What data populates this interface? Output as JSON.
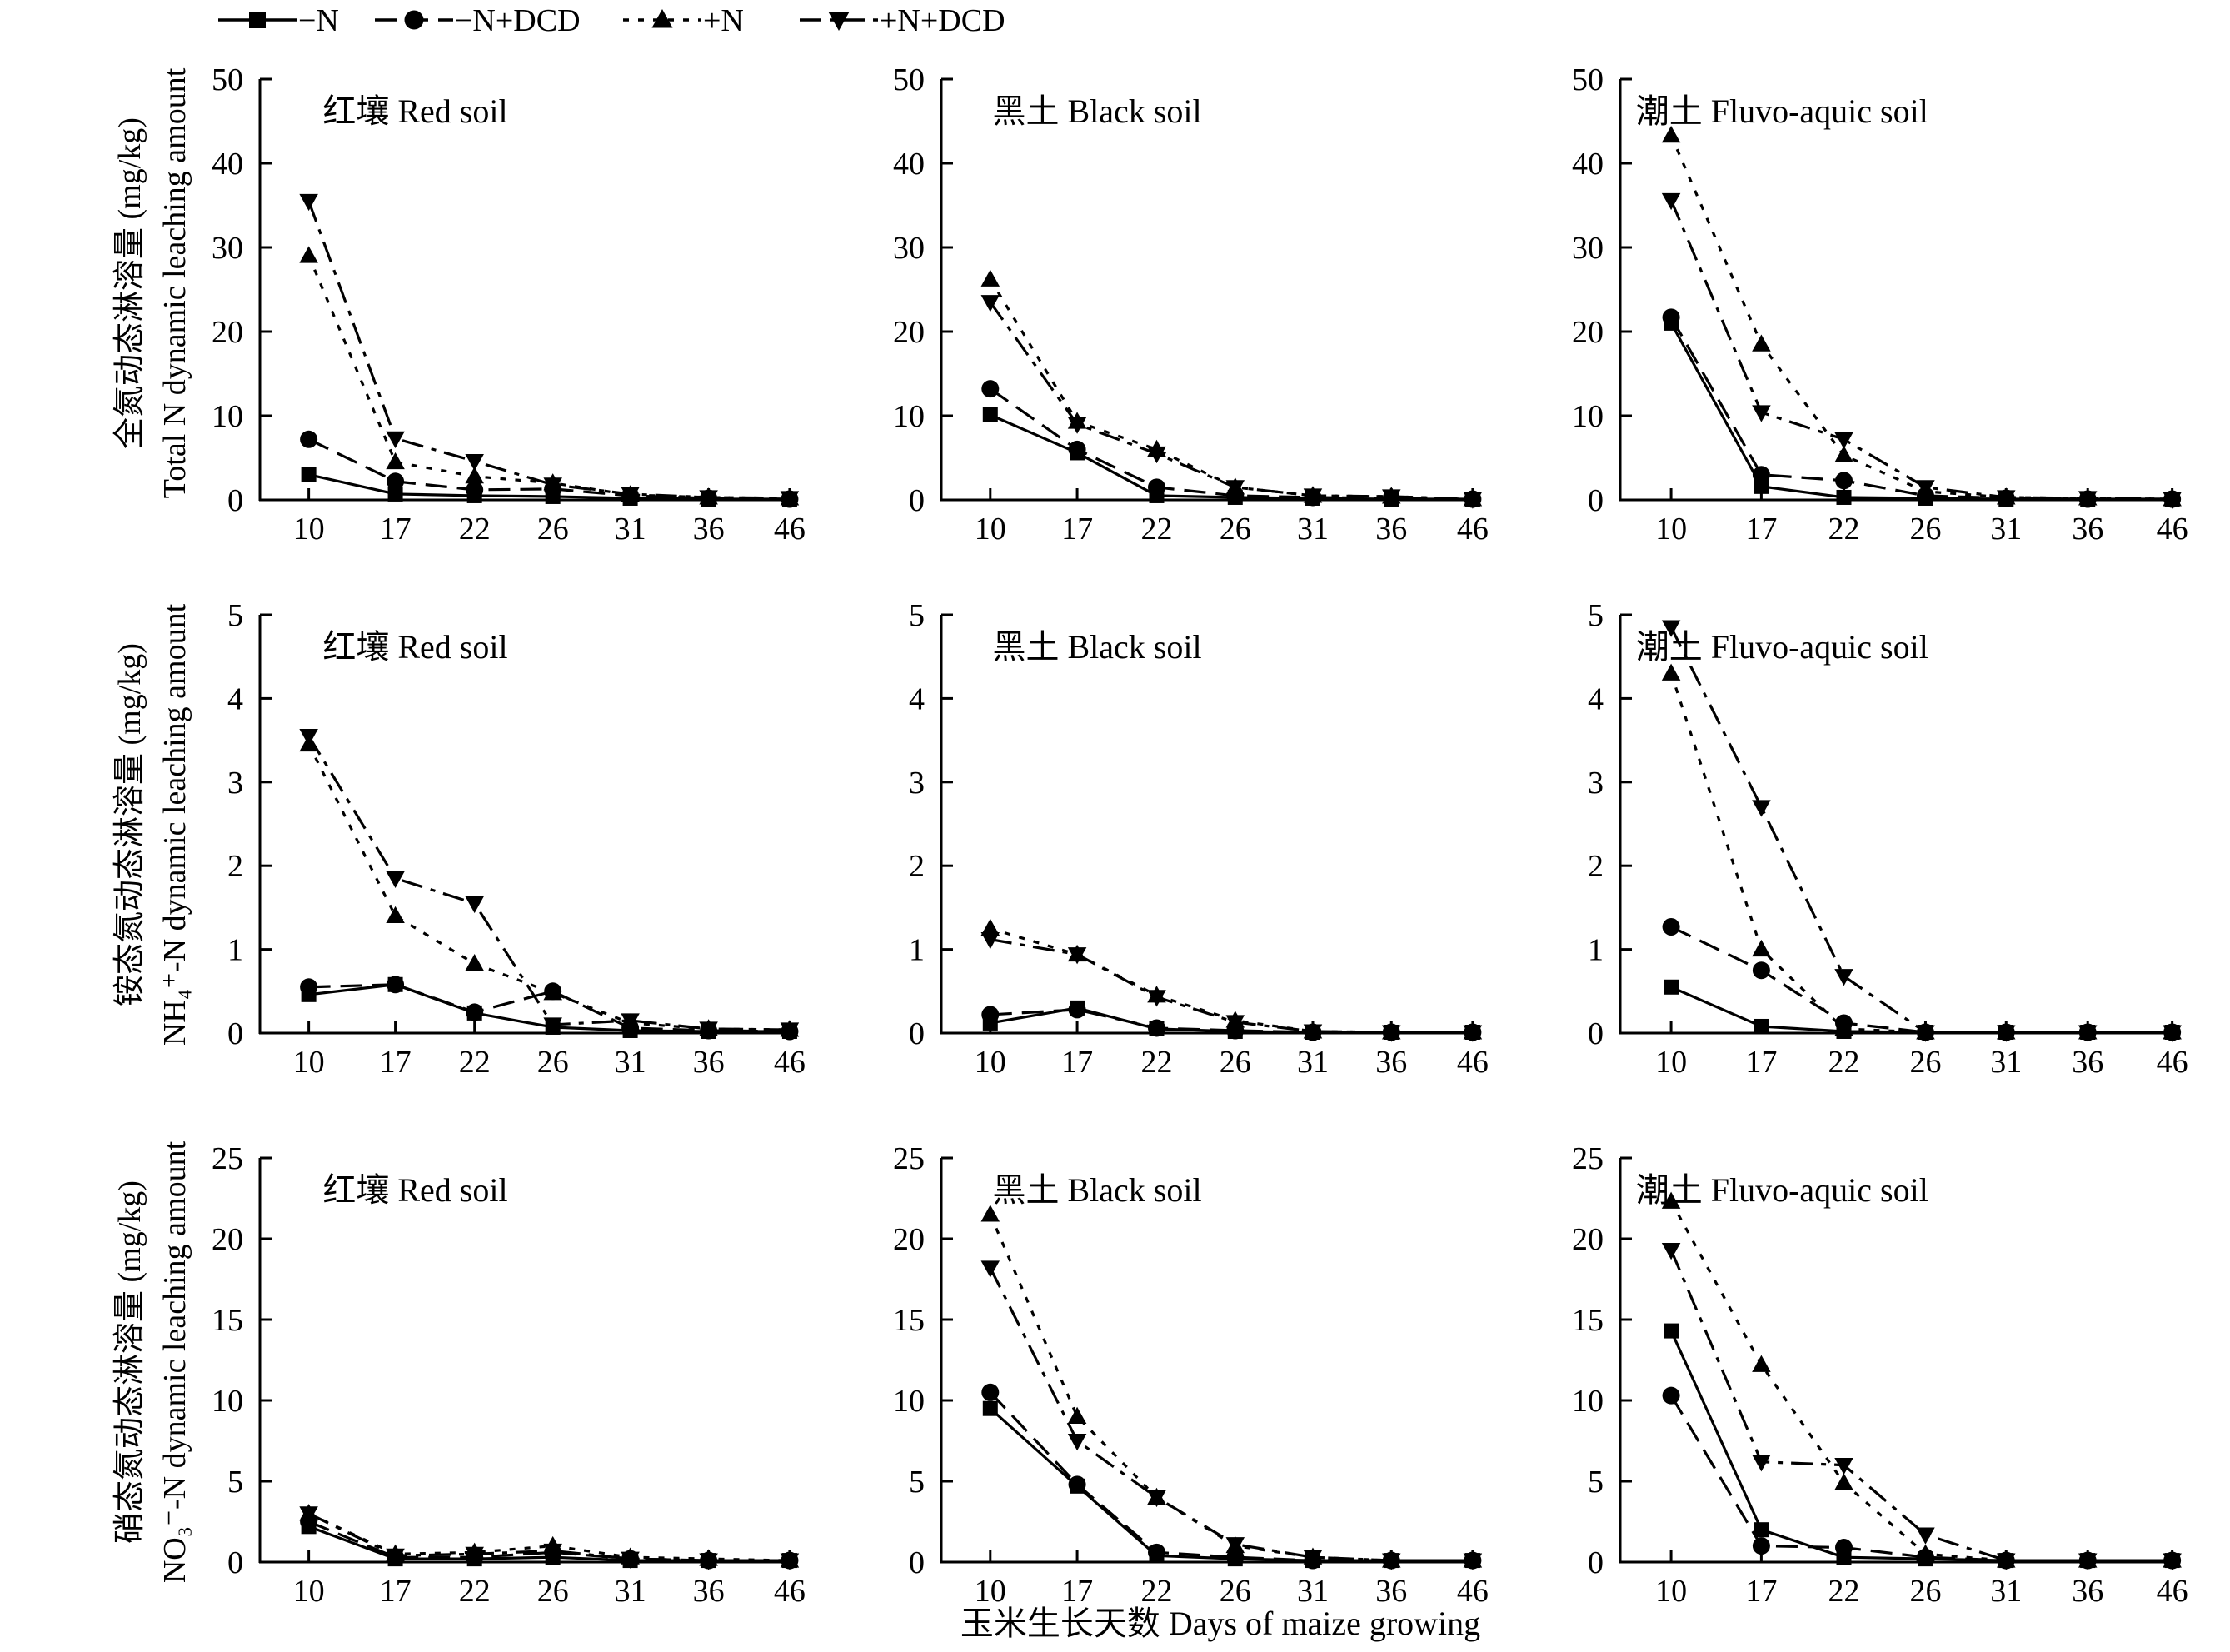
{
  "legend": [
    {
      "label": "−N",
      "marker": "square",
      "dash": "solid"
    },
    {
      "label": "−N+DCD",
      "marker": "circle",
      "dash": "dashed"
    },
    {
      "label": "+N",
      "marker": "triangle-up",
      "dash": "dotted"
    },
    {
      "label": "+N+DCD",
      "marker": "triangle-down",
      "dash": "dashdot"
    }
  ],
  "xlabel": "玉米生长天数 Days of maize growing",
  "row_ylabels": [
    [
      "全氮动态淋溶量 (mg/kg)",
      "Total N dynamic leaching amount"
    ],
    [
      "铵态氮动态淋溶量 (mg/kg)",
      "NH₄⁺-N dynamic leaching amount"
    ],
    [
      "硝态氮动态淋溶量 (mg/kg)",
      "NO₃⁻-N dynamic leaching amount"
    ]
  ],
  "chart_data": [
    {
      "type": "line",
      "title": "红壤 Red soil",
      "x": [
        "10",
        "17",
        "22",
        "26",
        "31",
        "36",
        "46"
      ],
      "ylim": [
        0,
        50
      ],
      "yticks": [
        0,
        10,
        20,
        30,
        40,
        50
      ],
      "series": [
        {
          "name": "−N",
          "values": [
            3.0,
            0.7,
            0.5,
            0.4,
            0.2,
            0.1,
            0.1
          ]
        },
        {
          "name": "−N+DCD",
          "values": [
            7.2,
            2.2,
            1.2,
            1.3,
            0.5,
            0.2,
            0.1
          ]
        },
        {
          "name": "+N",
          "values": [
            29.0,
            4.5,
            2.8,
            2.0,
            0.6,
            0.3,
            0.2
          ]
        },
        {
          "name": "+N+DCD",
          "values": [
            35.5,
            7.3,
            4.6,
            1.8,
            0.7,
            0.3,
            0.2
          ]
        }
      ]
    },
    {
      "type": "line",
      "title": "黑土 Black soil",
      "x": [
        "10",
        "17",
        "22",
        "26",
        "31",
        "36",
        "46"
      ],
      "ylim": [
        0,
        50
      ],
      "yticks": [
        0,
        10,
        20,
        30,
        40,
        50
      ],
      "series": [
        {
          "name": "−N",
          "values": [
            10.1,
            5.6,
            0.5,
            0.3,
            0.2,
            0.1,
            0.1
          ]
        },
        {
          "name": "−N+DCD",
          "values": [
            13.2,
            6.0,
            1.5,
            0.5,
            0.3,
            0.2,
            0.1
          ]
        },
        {
          "name": "+N",
          "values": [
            26.2,
            9.3,
            6.0,
            1.5,
            0.5,
            0.4,
            0.1
          ]
        },
        {
          "name": "+N+DCD",
          "values": [
            23.5,
            9.0,
            5.5,
            1.5,
            0.5,
            0.4,
            0.1
          ]
        }
      ]
    },
    {
      "type": "line",
      "title": "潮土 Fluvo-aquic soil",
      "x": [
        "10",
        "17",
        "22",
        "26",
        "31",
        "36",
        "46"
      ],
      "ylim": [
        0,
        50
      ],
      "yticks": [
        0,
        10,
        20,
        30,
        40,
        50
      ],
      "series": [
        {
          "name": "−N",
          "values": [
            21.0,
            1.6,
            0.3,
            0.2,
            0.1,
            0.1,
            0.1
          ]
        },
        {
          "name": "−N+DCD",
          "values": [
            21.7,
            3.0,
            2.3,
            0.5,
            0.2,
            0.1,
            0.1
          ]
        },
        {
          "name": "+N",
          "values": [
            43.3,
            18.5,
            5.3,
            1.0,
            0.3,
            0.2,
            0.1
          ]
        },
        {
          "name": "+N+DCD",
          "values": [
            35.6,
            10.4,
            7.2,
            1.5,
            0.3,
            0.2,
            0.1
          ]
        }
      ]
    },
    {
      "type": "line",
      "title": "红壤 Red soil",
      "x": [
        "10",
        "17",
        "22",
        "26",
        "31",
        "36",
        "46"
      ],
      "ylim": [
        0,
        5
      ],
      "yticks": [
        0,
        1,
        2,
        3,
        4,
        5
      ],
      "series": [
        {
          "name": "−N",
          "values": [
            0.46,
            0.58,
            0.24,
            0.07,
            0.03,
            0.02,
            0.02
          ]
        },
        {
          "name": "−N+DCD",
          "values": [
            0.55,
            0.58,
            0.25,
            0.5,
            0.06,
            0.03,
            0.02
          ]
        },
        {
          "name": "+N",
          "values": [
            3.45,
            1.4,
            0.83,
            0.48,
            0.12,
            0.05,
            0.04
          ]
        },
        {
          "name": "+N+DCD",
          "values": [
            3.55,
            1.85,
            1.55,
            0.1,
            0.15,
            0.05,
            0.04
          ]
        }
      ]
    },
    {
      "type": "line",
      "title": "黑土 Black soil",
      "x": [
        "10",
        "17",
        "22",
        "26",
        "31",
        "36",
        "46"
      ],
      "ylim": [
        0,
        5
      ],
      "yticks": [
        0,
        1,
        2,
        3,
        4,
        5
      ],
      "series": [
        {
          "name": "−N",
          "values": [
            0.12,
            0.3,
            0.05,
            0.02,
            0.01,
            0.01,
            0.01
          ]
        },
        {
          "name": "−N+DCD",
          "values": [
            0.22,
            0.28,
            0.06,
            0.03,
            0.01,
            0.01,
            0.01
          ]
        },
        {
          "name": "+N",
          "values": [
            1.25,
            0.94,
            0.45,
            0.15,
            0.02,
            0.01,
            0.01
          ]
        },
        {
          "name": "+N+DCD",
          "values": [
            1.12,
            0.94,
            0.43,
            0.13,
            0.02,
            0.01,
            0.01
          ]
        }
      ]
    },
    {
      "type": "line",
      "title": "潮土 Fluvo-aquic soil",
      "x": [
        "10",
        "17",
        "22",
        "26",
        "31",
        "36",
        "46"
      ],
      "ylim": [
        0,
        5
      ],
      "yticks": [
        0,
        1,
        2,
        3,
        4,
        5
      ],
      "series": [
        {
          "name": "−N",
          "values": [
            0.55,
            0.08,
            0.02,
            0.01,
            0.01,
            0.01,
            0.01
          ]
        },
        {
          "name": "−N+DCD",
          "values": [
            1.27,
            0.75,
            0.12,
            0.01,
            0.01,
            0.01,
            0.01
          ]
        },
        {
          "name": "+N",
          "values": [
            4.3,
            1.0,
            0.05,
            0.01,
            0.01,
            0.01,
            0.01
          ]
        },
        {
          "name": "+N+DCD",
          "values": [
            4.85,
            2.7,
            0.68,
            0.01,
            0.01,
            0.01,
            0.01
          ]
        }
      ]
    },
    {
      "type": "line",
      "title": "红壤 Red soil",
      "x": [
        "10",
        "17",
        "22",
        "26",
        "31",
        "36",
        "46"
      ],
      "ylim": [
        0,
        25
      ],
      "yticks": [
        0,
        5,
        10,
        15,
        20,
        25
      ],
      "series": [
        {
          "name": "−N",
          "values": [
            2.2,
            0.2,
            0.2,
            0.3,
            0.1,
            0.1,
            0.1
          ]
        },
        {
          "name": "−N+DCD",
          "values": [
            2.5,
            0.3,
            0.3,
            0.6,
            0.2,
            0.1,
            0.1
          ]
        },
        {
          "name": "+N",
          "values": [
            3.0,
            0.5,
            0.6,
            1.0,
            0.3,
            0.2,
            0.1
          ]
        },
        {
          "name": "+N+DCD",
          "values": [
            3.0,
            0.4,
            0.5,
            0.7,
            0.2,
            0.1,
            0.1
          ]
        }
      ]
    },
    {
      "type": "line",
      "title": "黑土 Black soil",
      "x": [
        "10",
        "17",
        "22",
        "26",
        "31",
        "36",
        "46"
      ],
      "ylim": [
        0,
        25
      ],
      "yticks": [
        0,
        5,
        10,
        15,
        20,
        25
      ],
      "series": [
        {
          "name": "−N",
          "values": [
            9.5,
            4.7,
            0.4,
            0.2,
            0.1,
            0.1,
            0.1
          ]
        },
        {
          "name": "−N+DCD",
          "values": [
            10.5,
            4.8,
            0.6,
            0.3,
            0.1,
            0.1,
            0.1
          ]
        },
        {
          "name": "+N",
          "values": [
            21.5,
            9.0,
            4.0,
            1.0,
            0.3,
            0.1,
            0.1
          ]
        },
        {
          "name": "+N+DCD",
          "values": [
            18.2,
            7.5,
            4.0,
            1.1,
            0.3,
            0.1,
            0.1
          ]
        }
      ]
    },
    {
      "type": "line",
      "title": "潮土 Fluvo-aquic soil",
      "x": [
        "10",
        "17",
        "22",
        "26",
        "31",
        "36",
        "46"
      ],
      "ylim": [
        0,
        25
      ],
      "yticks": [
        0,
        5,
        10,
        15,
        20,
        25
      ],
      "series": [
        {
          "name": "−N",
          "values": [
            14.3,
            2.0,
            0.3,
            0.2,
            0.1,
            0.1,
            0.1
          ]
        },
        {
          "name": "−N+DCD",
          "values": [
            10.3,
            1.0,
            0.9,
            0.3,
            0.1,
            0.1,
            0.1
          ]
        },
        {
          "name": "+N",
          "values": [
            22.3,
            12.2,
            4.9,
            0.5,
            0.1,
            0.1,
            0.1
          ]
        },
        {
          "name": "+N+DCD",
          "values": [
            19.3,
            6.2,
            6.0,
            1.7,
            0.1,
            0.1,
            0.1
          ]
        }
      ]
    }
  ]
}
